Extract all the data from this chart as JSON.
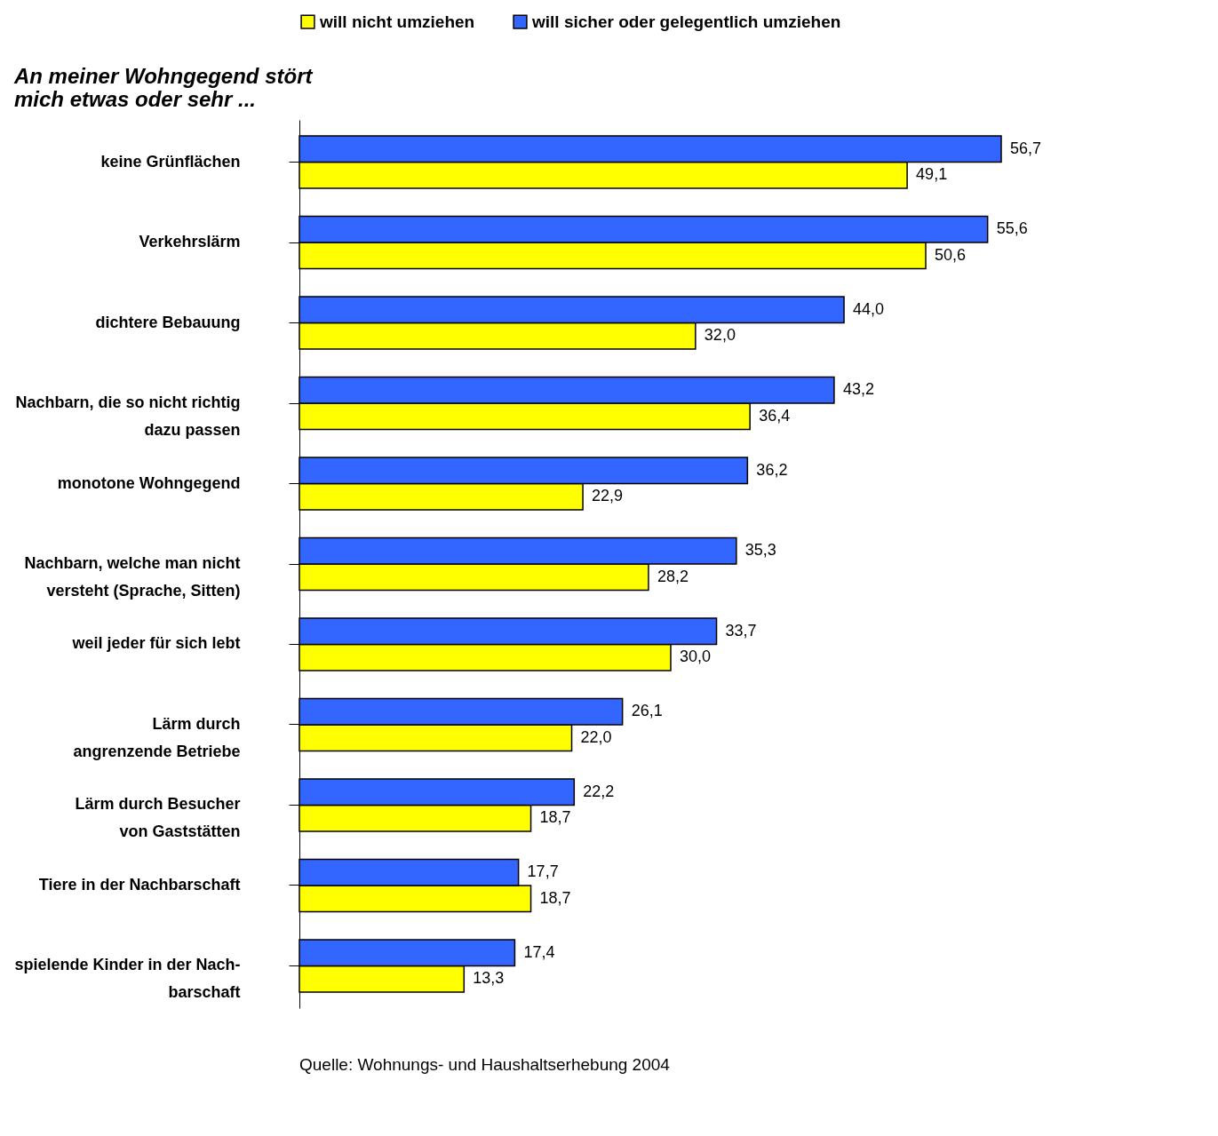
{
  "chart_data": {
    "type": "bar",
    "orientation": "horizontal",
    "title": "An meiner Wohngegend stört\nmich etwas oder sehr ...",
    "categories": [
      "keine Grünflächen",
      "Verkehrslärm",
      "dichtere Bebauung",
      "Nachbarn, die so nicht richtig\ndazu passen",
      "monotone Wohngegend",
      "Nachbarn, welche man nicht\nversteht (Sprache, Sitten)",
      "weil jeder für sich lebt",
      "Lärm durch\nangrenzende Betriebe",
      "Lärm durch Besucher\nvon Gaststätten",
      "Tiere in der Nachbarschaft",
      "spielende Kinder in der Nach-\nbarschaft"
    ],
    "series": [
      {
        "name": "will nicht umziehen",
        "color": "#ffff00",
        "values": [
          49.1,
          50.6,
          32.0,
          36.4,
          22.9,
          28.2,
          30.0,
          22.0,
          18.7,
          18.7,
          13.3
        ],
        "value_labels": [
          "49,1",
          "50,6",
          "32,0",
          "36,4",
          "22,9",
          "28,2",
          "30,0",
          "22,0",
          "18,7",
          "18,7",
          "13,3"
        ]
      },
      {
        "name": "will sicher oder gelegentlich umziehen",
        "color": "#3366ff",
        "values": [
          56.7,
          55.6,
          44.0,
          43.2,
          36.2,
          35.3,
          33.7,
          26.1,
          22.2,
          17.7,
          17.4
        ],
        "value_labels": [
          "56,7",
          "55,6",
          "44,0",
          "43,2",
          "36,2",
          "35,3",
          "33,7",
          "26,1",
          "22,2",
          "17,7",
          "17,4"
        ]
      }
    ],
    "legend": "top",
    "grid": false,
    "annotations": [
      "Quelle: Wohnungs- und Haushaltserhebung 2004"
    ]
  }
}
